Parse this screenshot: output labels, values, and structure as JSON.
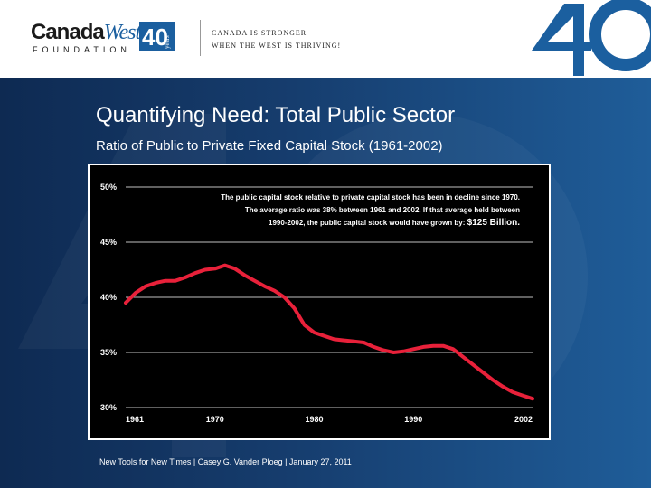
{
  "header": {
    "logo_canada": "Canada",
    "logo_west": "West",
    "logo_foundation": "FOUNDATION",
    "logo_years": "years",
    "tagline_line1": "CANADA IS STRONGER",
    "tagline_line2": "WHEN THE WEST IS THRIVING!"
  },
  "slide": {
    "title": "Quantifying Need:  Total Public Sector",
    "subtitle": "Ratio of Public to Private Fixed Capital Stock (1961-2002)"
  },
  "footer": {
    "text": "New Tools for New Times  |  Casey G. Vander Ploeg  |  January 27, 2011"
  },
  "colors": {
    "line": "#e8213a",
    "chart_bg": "#000000",
    "grid": "#ffffff"
  },
  "chart_data": {
    "type": "line",
    "title": "",
    "xlabel": "",
    "ylabel": "",
    "xlim": [
      1961,
      2002
    ],
    "ylim": [
      30,
      50
    ],
    "y_ticks": [
      30,
      35,
      40,
      45,
      50
    ],
    "y_tick_labels": [
      "30%",
      "35%",
      "40%",
      "45%",
      "50%"
    ],
    "x_ticks": [
      1961,
      1970,
      1980,
      1990,
      2002
    ],
    "x_tick_labels": [
      "1961",
      "1970",
      "1980",
      "1990",
      "2002"
    ],
    "grid": true,
    "annotation": {
      "line1": "The public capital stock relative to private capital stock has been in decline since 1970.",
      "line2": "The average ratio was 38% between 1961 and 2002.  If that average held between",
      "line3": "1990-2002, the public capital stock would have grown by: ",
      "highlight": "$125 Billion."
    },
    "series": [
      {
        "x": [
          1961,
          1962,
          1963,
          1964,
          1965,
          1966,
          1967,
          1968,
          1969,
          1970,
          1971,
          1972,
          1973,
          1974,
          1975,
          1976,
          1977,
          1978,
          1979,
          1980,
          1981,
          1982,
          1983,
          1984,
          1985,
          1986,
          1987,
          1988,
          1989,
          1990,
          1991,
          1992,
          1993,
          1994,
          1995,
          1996,
          1997,
          1998,
          1999,
          2000,
          2001,
          2002
        ],
        "values": [
          39.5,
          40.4,
          41.0,
          41.3,
          41.5,
          41.5,
          41.8,
          42.2,
          42.5,
          42.6,
          42.9,
          42.6,
          42.0,
          41.5,
          41.0,
          40.6,
          40.0,
          39.0,
          37.5,
          36.8,
          36.5,
          36.2,
          36.1,
          36.0,
          35.9,
          35.5,
          35.2,
          35.0,
          35.1,
          35.3,
          35.5,
          35.6,
          35.6,
          35.3,
          34.6,
          33.9,
          33.2,
          32.5,
          31.9,
          31.4,
          31.1,
          30.8
        ]
      }
    ]
  }
}
